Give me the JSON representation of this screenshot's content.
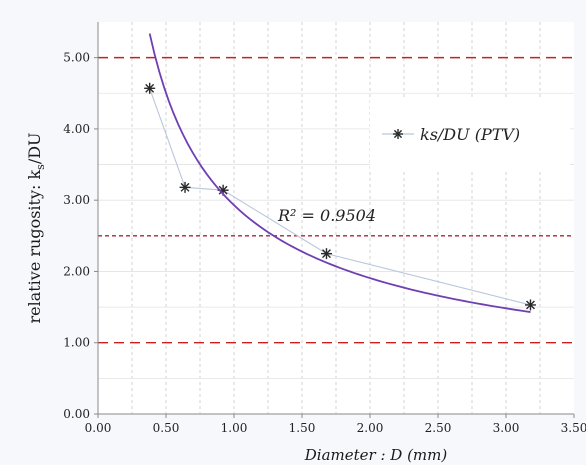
{
  "chart_data": {
    "type": "scatter",
    "title": "",
    "xlabel": "Diameter : D (mm)",
    "ylabel_parts": {
      "before": "relative rugosity: k",
      "subscript": "s",
      "after": "/DU"
    },
    "xlim": [
      0,
      3.5
    ],
    "ylim": [
      0,
      5.5
    ],
    "x_ticks": [
      "0.00",
      "0.50",
      "1.00",
      "1.50",
      "2.00",
      "2.50",
      "3.00",
      "3.50"
    ],
    "y_ticks": [
      "0.00",
      "1.00",
      "2.00",
      "3.00",
      "4.00",
      "5.00"
    ],
    "grid": "vertical-dashed",
    "legend": {
      "placement": "right",
      "entries": [
        "ks/DU (PTV)"
      ]
    },
    "annotations": [
      {
        "text": "R² = 0.9504",
        "x": 1.25,
        "y": 2.78
      }
    ],
    "series": [
      {
        "name": "ks/DU (PTV)",
        "style": "markers-with-thin-line",
        "marker": "asterisk",
        "x": [
          0.38,
          0.64,
          0.92,
          1.68,
          3.18
        ],
        "y": [
          4.57,
          3.18,
          3.14,
          2.25,
          1.53
        ],
        "color": "#2a2a2a",
        "line_color": "#b9c7dc"
      }
    ],
    "trendline": {
      "type": "power",
      "r2": 0.9504,
      "coefficient": 2.93,
      "exponent": -0.62,
      "x_range": [
        0.38,
        3.18
      ],
      "color": "#6f3fb3"
    },
    "reference_lines": [
      {
        "y": 5.0,
        "style": "long-dash",
        "color": "#c82020"
      },
      {
        "y": 2.5,
        "style": "short-dash",
        "color": "#a52a2a"
      },
      {
        "y": 1.0,
        "style": "long-dash",
        "color": "#c82020"
      }
    ]
  }
}
